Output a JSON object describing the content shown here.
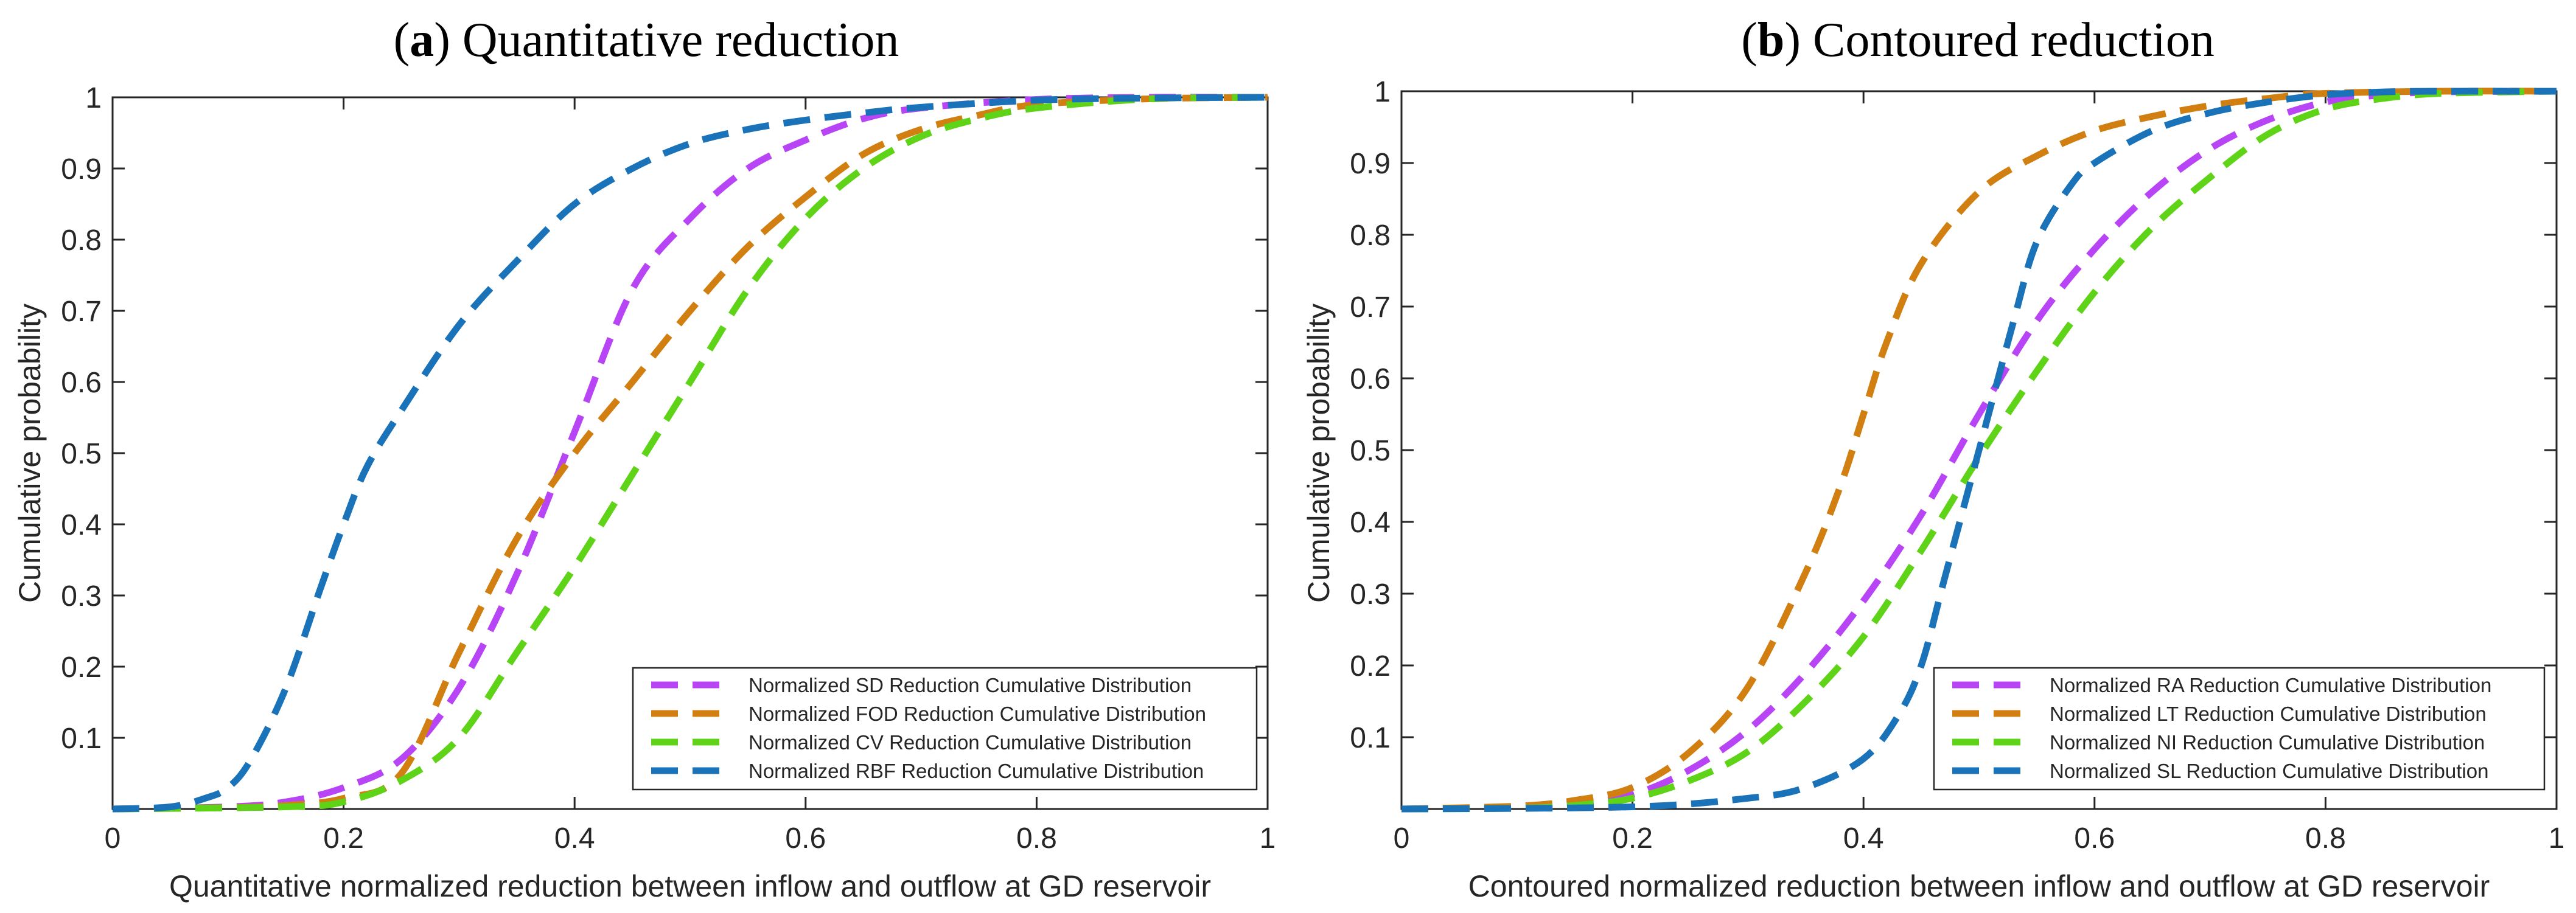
{
  "chart_data": [
    {
      "type": "line",
      "title_letter": "a",
      "title_text": "Quantitative reduction",
      "xlabel": "Quantitative normalized reduction between inflow and outflow at GD reservoir",
      "ylabel": "Cumulative probability",
      "xlim": [
        0,
        1
      ],
      "ylim": [
        0,
        1
      ],
      "xticks": [
        "0",
        "0.2",
        "0.4",
        "0.6",
        "0.8",
        "1"
      ],
      "yticks": [
        "0.1",
        "0.2",
        "0.3",
        "0.4",
        "0.5",
        "0.6",
        "0.7",
        "0.8",
        "0.9",
        "1"
      ],
      "grid": false,
      "legend_position": "bottom-right",
      "series": [
        {
          "name": "Normalized SD Reduction Cumulative Distribution",
          "color": "#b845f5",
          "x": [
            0,
            0.1,
            0.15,
            0.2,
            0.25,
            0.3,
            0.35,
            0.4,
            0.45,
            0.5,
            0.55,
            0.6,
            0.65,
            0.7,
            0.8,
            0.9,
            1
          ],
          "y": [
            0,
            0.003,
            0.01,
            0.03,
            0.07,
            0.17,
            0.33,
            0.53,
            0.73,
            0.83,
            0.9,
            0.94,
            0.97,
            0.985,
            0.997,
            1,
            1
          ]
        },
        {
          "name": "Normalized FOD Reduction Cumulative Distribution",
          "color": "#d07f10",
          "x": [
            0,
            0.1,
            0.15,
            0.2,
            0.25,
            0.3,
            0.35,
            0.4,
            0.45,
            0.5,
            0.55,
            0.6,
            0.65,
            0.7,
            0.75,
            0.8,
            0.9,
            1
          ],
          "y": [
            0,
            0.002,
            0.005,
            0.015,
            0.05,
            0.22,
            0.38,
            0.5,
            0.6,
            0.7,
            0.79,
            0.86,
            0.92,
            0.955,
            0.975,
            0.99,
            0.998,
            1
          ]
        },
        {
          "name": "Normalized CV Reduction Cumulative Distribution",
          "color": "#5fd317",
          "x": [
            0,
            0.15,
            0.2,
            0.25,
            0.3,
            0.35,
            0.4,
            0.45,
            0.5,
            0.55,
            0.6,
            0.65,
            0.7,
            0.75,
            0.8,
            0.9,
            1
          ],
          "y": [
            0,
            0.003,
            0.01,
            0.04,
            0.1,
            0.22,
            0.34,
            0.47,
            0.6,
            0.73,
            0.83,
            0.9,
            0.945,
            0.97,
            0.985,
            0.998,
            1
          ]
        },
        {
          "name": "Normalized RBF Reduction Cumulative Distribution",
          "color": "#1a72b8",
          "x": [
            0,
            0.05,
            0.08,
            0.1,
            0.12,
            0.15,
            0.18,
            0.2,
            0.22,
            0.25,
            0.3,
            0.35,
            0.4,
            0.45,
            0.5,
            0.55,
            0.6,
            0.65,
            0.7,
            0.8,
            0.9,
            1
          ],
          "y": [
            0,
            0.003,
            0.015,
            0.03,
            0.07,
            0.17,
            0.31,
            0.4,
            0.48,
            0.56,
            0.68,
            0.77,
            0.85,
            0.9,
            0.935,
            0.955,
            0.968,
            0.978,
            0.986,
            0.996,
            0.999,
            1
          ]
        }
      ]
    },
    {
      "type": "line",
      "title_letter": "b",
      "title_text": "Contoured reduction",
      "xlabel": "Contoured normalized reduction between inflow and outflow at GD reservoir",
      "ylabel": "Cumulative probability",
      "xlim": [
        0,
        1
      ],
      "ylim": [
        0,
        1
      ],
      "xticks": [
        "0",
        "0.2",
        "0.4",
        "0.6",
        "0.8",
        "1"
      ],
      "yticks": [
        "0.1",
        "0.2",
        "0.3",
        "0.4",
        "0.5",
        "0.6",
        "0.7",
        "0.8",
        "0.9",
        "1"
      ],
      "grid": false,
      "legend_position": "bottom-right",
      "series": [
        {
          "name": "Normalized RA Reduction Cumulative Distribution",
          "color": "#b845f5",
          "x": [
            0,
            0.1,
            0.15,
            0.2,
            0.25,
            0.3,
            0.35,
            0.4,
            0.45,
            0.5,
            0.55,
            0.6,
            0.65,
            0.7,
            0.75,
            0.8,
            0.85,
            0.9,
            1
          ],
          "y": [
            0,
            0.002,
            0.008,
            0.02,
            0.055,
            0.11,
            0.19,
            0.29,
            0.41,
            0.55,
            0.68,
            0.78,
            0.86,
            0.92,
            0.96,
            0.985,
            0.995,
            0.999,
            1
          ]
        },
        {
          "name": "Normalized LT Reduction Cumulative Distribution",
          "color": "#d07f10",
          "x": [
            0,
            0.1,
            0.15,
            0.2,
            0.25,
            0.3,
            0.35,
            0.38,
            0.4,
            0.42,
            0.45,
            0.5,
            0.55,
            0.6,
            0.65,
            0.7,
            0.75,
            0.8,
            0.9,
            1
          ],
          "y": [
            0,
            0.004,
            0.012,
            0.03,
            0.08,
            0.17,
            0.33,
            0.45,
            0.55,
            0.65,
            0.76,
            0.86,
            0.91,
            0.945,
            0.965,
            0.98,
            0.99,
            0.997,
            1,
            1
          ]
        },
        {
          "name": "Normalized NI Reduction Cumulative Distribution",
          "color": "#5fd317",
          "x": [
            0,
            0.1,
            0.15,
            0.2,
            0.25,
            0.3,
            0.35,
            0.4,
            0.45,
            0.5,
            0.55,
            0.6,
            0.65,
            0.7,
            0.75,
            0.8,
            0.85,
            0.9,
            1
          ],
          "y": [
            0,
            0.001,
            0.005,
            0.015,
            0.04,
            0.08,
            0.15,
            0.24,
            0.36,
            0.49,
            0.61,
            0.72,
            0.81,
            0.88,
            0.94,
            0.975,
            0.99,
            0.997,
            1
          ]
        },
        {
          "name": "Normalized SL Reduction Cumulative Distribution",
          "color": "#1a72b8",
          "x": [
            0,
            0.2,
            0.3,
            0.35,
            0.4,
            0.43,
            0.45,
            0.47,
            0.5,
            0.53,
            0.55,
            0.58,
            0.6,
            0.65,
            0.7,
            0.75,
            0.8,
            0.85,
            0.9,
            1
          ],
          "y": [
            0,
            0.003,
            0.015,
            0.03,
            0.07,
            0.13,
            0.2,
            0.32,
            0.5,
            0.68,
            0.79,
            0.87,
            0.9,
            0.945,
            0.97,
            0.985,
            0.995,
            0.999,
            1,
            1
          ]
        }
      ]
    }
  ]
}
